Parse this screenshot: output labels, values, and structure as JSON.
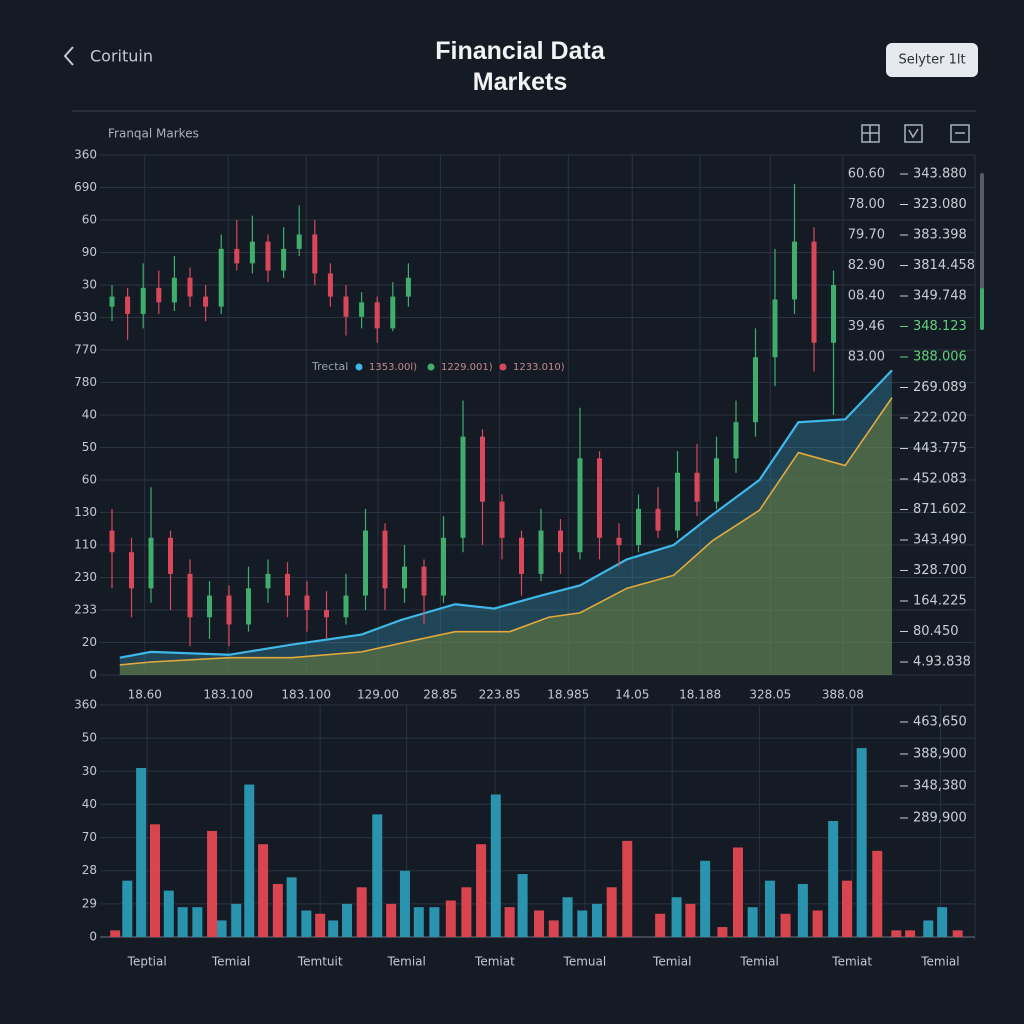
{
  "header": {
    "back_label": "Corituin",
    "title": "Financial Data Markets",
    "button": "Selyter 1lt"
  },
  "chart_data": [
    {
      "type": "candlestick",
      "label": "Franqal Markes",
      "grid": true,
      "xlim": [
        0,
        100
      ],
      "ylim": [
        0,
        360
      ],
      "xticks": [
        {
          "value": 4.2,
          "label": "18.60"
        },
        {
          "value": 14.9,
          "label": "183.100"
        },
        {
          "value": 24.9,
          "label": "183.100"
        },
        {
          "value": 34.1,
          "label": "129.00"
        },
        {
          "value": 42.1,
          "label": "28.85"
        },
        {
          "value": 49.7,
          "label": "223.85"
        },
        {
          "value": 58.5,
          "label": "18.985"
        },
        {
          "value": 66.7,
          "label": "14.05"
        },
        {
          "value": 75.4,
          "label": "18.188"
        },
        {
          "value": 84.4,
          "label": "328.05"
        },
        {
          "value": 93.7,
          "label": "388.08"
        }
      ],
      "yticks": [
        0,
        {
          "value": 22.5,
          "label": "20"
        },
        {
          "value": 45,
          "label": "233"
        },
        {
          "value": 67.5,
          "label": "230"
        },
        {
          "value": 90,
          "label": "110"
        },
        {
          "value": 112.5,
          "label": "130"
        },
        {
          "value": 135,
          "label": "60"
        },
        {
          "value": 157.5,
          "label": "50"
        },
        {
          "value": 180,
          "label": "40"
        },
        {
          "value": 202.5,
          "label": "780"
        },
        {
          "value": 225,
          "label": "770"
        },
        {
          "value": 247.5,
          "label": "630"
        },
        {
          "value": 270,
          "label": "30"
        },
        {
          "value": 292.5,
          "label": "90"
        },
        {
          "value": 315,
          "label": "60"
        },
        {
          "value": 337.5,
          "label": "690"
        },
        360
      ],
      "up_color": "#3fae6c",
      "down_color": "#d9485a",
      "series": [
        {
          "color": "#3fb8e8",
          "fill": "rgba(50,140,170,0.38)",
          "x": [
            1,
            5,
            15,
            23,
            32,
            37,
            44,
            49,
            55,
            60,
            66,
            72,
            77,
            83,
            88,
            94,
            100
          ],
          "values": [
            12,
            16,
            14,
            21,
            28,
            38,
            49,
            46,
            55,
            62,
            80,
            90,
            111,
            135,
            175,
            177,
            211
          ]
        },
        {
          "color": "#e3a93c",
          "fill": "rgba(110,125,60,0.55)",
          "x": [
            1,
            5,
            15,
            23,
            32,
            37,
            44,
            51,
            56,
            60,
            66,
            72,
            77,
            83,
            88,
            94,
            100
          ],
          "values": [
            7,
            9,
            12,
            12,
            16,
            22,
            30,
            30,
            40,
            43,
            60,
            69,
            93,
            114,
            154,
            145,
            192
          ]
        }
      ],
      "candles": [
        {
          "x": [
            0,
            2,
            4,
            6,
            8,
            10,
            12,
            14,
            16,
            18,
            20,
            22,
            24,
            26,
            28,
            30,
            32,
            34,
            36,
            38
          ],
          "open": [
            255,
            262,
            250,
            268,
            258,
            275,
            262,
            255,
            295,
            285,
            300,
            280,
            295,
            305,
            278,
            262,
            248,
            258,
            240,
            262
          ],
          "close": [
            262,
            250,
            268,
            258,
            275,
            262,
            255,
            295,
            285,
            300,
            280,
            295,
            305,
            278,
            262,
            248,
            258,
            240,
            262,
            275
          ],
          "high": [
            270,
            268,
            285,
            280,
            290,
            282,
            270,
            305,
            315,
            318,
            305,
            310,
            325,
            315,
            285,
            270,
            265,
            262,
            272,
            285
          ],
          "low": [
            245,
            232,
            240,
            250,
            252,
            255,
            245,
            250,
            280,
            278,
            272,
            275,
            290,
            270,
            255,
            235,
            240,
            230,
            238,
            255
          ]
        },
        {
          "x": [
            0,
            2.5,
            5,
            7.5,
            10,
            12.5,
            15,
            17.5,
            20,
            22.5,
            25,
            27.5,
            30,
            32.5,
            35,
            37.5,
            40,
            42.5,
            45,
            47.5,
            50,
            52.5,
            55,
            57.5,
            60,
            62.5,
            65,
            67.5,
            70,
            72.5,
            75,
            77.5,
            80,
            82.5,
            85,
            87.5,
            90,
            92.5
          ],
          "open": [
            100,
            85,
            60,
            95,
            70,
            40,
            55,
            35,
            60,
            70,
            55,
            45,
            40,
            55,
            100,
            60,
            75,
            55,
            95,
            165,
            120,
            95,
            70,
            100,
            85,
            150,
            95,
            90,
            115,
            100,
            140,
            120,
            150,
            175,
            220,
            260,
            300,
            230
          ],
          "close": [
            85,
            60,
            95,
            70,
            40,
            55,
            35,
            60,
            70,
            55,
            45,
            40,
            55,
            100,
            60,
            75,
            55,
            95,
            165,
            120,
            95,
            70,
            100,
            85,
            150,
            95,
            90,
            115,
            100,
            140,
            120,
            150,
            175,
            220,
            260,
            300,
            230,
            270
          ],
          "high": [
            115,
            95,
            130,
            100,
            80,
            65,
            62,
            75,
            80,
            78,
            65,
            58,
            70,
            115,
            105,
            90,
            80,
            110,
            190,
            170,
            125,
            100,
            115,
            108,
            185,
            155,
            105,
            125,
            130,
            155,
            160,
            165,
            190,
            240,
            295,
            340,
            310,
            280
          ],
          "low": [
            60,
            40,
            50,
            45,
            20,
            25,
            20,
            30,
            50,
            40,
            30,
            25,
            35,
            45,
            45,
            50,
            35,
            50,
            85,
            90,
            80,
            55,
            65,
            70,
            80,
            80,
            75,
            85,
            95,
            95,
            110,
            115,
            140,
            165,
            200,
            250,
            210,
            180
          ]
        }
      ],
      "legend": {
        "title": "Trectal",
        "entries": [
          {
            "label": "1353.00l)",
            "color": "#3fb8e8"
          },
          {
            "label": "1229.001)",
            "color": "#3fae6c"
          },
          {
            "label": "1233.010)",
            "color": "#d9485a"
          }
        ]
      },
      "annotations": [
        "60.60",
        "78.00",
        "79.70",
        "82.90",
        "08.40",
        "39.46",
        "83.00"
      ],
      "right_labels": [
        {
          "text": "343.880",
          "color": "#c9cfd6"
        },
        {
          "text": "323.080",
          "color": "#c9cfd6"
        },
        {
          "text": "383.398",
          "color": "#c9cfd6"
        },
        {
          "text": "3814.458",
          "color": "#c9cfd6"
        },
        {
          "text": "349.748",
          "color": "#c9cfd6"
        },
        {
          "text": "348.123",
          "color": "#5fd07a"
        },
        {
          "text": "388.006",
          "color": "#5fd07a"
        },
        {
          "text": "269.089",
          "color": "#c9cfd6"
        },
        {
          "text": "222.020",
          "color": "#c9cfd6"
        },
        {
          "text": "443.775",
          "color": "#c9cfd6"
        },
        {
          "text": "452.083",
          "color": "#c9cfd6"
        },
        {
          "text": "871.602",
          "color": "#c9cfd6"
        },
        {
          "text": "343.490",
          "color": "#c9cfd6"
        },
        {
          "text": "328.700",
          "color": "#c9cfd6"
        },
        {
          "text": "164.225",
          "color": "#c9cfd6"
        },
        {
          "text": "80.450",
          "color": "#c9cfd6"
        },
        {
          "text": "4.93.838",
          "color": "#c9cfd6"
        }
      ]
    },
    {
      "type": "bar",
      "grid": true,
      "xlim": [
        0,
        100
      ],
      "ylim": [
        0,
        7
      ],
      "yticks": [
        0,
        {
          "value": 1,
          "label": "29"
        },
        {
          "value": 2,
          "label": "28"
        },
        {
          "value": 3,
          "label": "70"
        },
        {
          "value": 4,
          "label": "40"
        },
        {
          "value": 5,
          "label": "30"
        },
        {
          "value": 6,
          "label": "50"
        },
        {
          "value": 7,
          "label": "360"
        }
      ],
      "xticks": [
        {
          "value": 4.3,
          "label": "Teptial"
        },
        {
          "value": 14,
          "label": "Temial"
        },
        {
          "value": 24.3,
          "label": "Temtuit"
        },
        {
          "value": 34.3,
          "label": "Temial"
        },
        {
          "value": 44.5,
          "label": "Temiat"
        },
        {
          "value": 54.9,
          "label": "Temual"
        },
        {
          "value": 65,
          "label": "Temial"
        },
        {
          "value": 75.1,
          "label": "Temial"
        },
        {
          "value": 85.8,
          "label": "Temiat"
        },
        {
          "value": 96,
          "label": "Temial"
        }
      ],
      "series": [
        {
          "color": "#2a93ad",
          "x": [
            2,
            3.6,
            6.8,
            8.4,
            10.1,
            12.9,
            14.6,
            16.1,
            21,
            22.7,
            25.8,
            27.4,
            30.9,
            34.1,
            35.7,
            37.5,
            44.6,
            47.7,
            52.9,
            54.6,
            56.3,
            65.5,
            68.8,
            74.3,
            76.3,
            80.1,
            83.6,
            86.9,
            94.6,
            96.2
          ],
          "values": [
            1.7,
            5.1,
            1.4,
            0.9,
            0.9,
            0.5,
            1,
            4.6,
            1.8,
            0.8,
            0.5,
            1,
            3.7,
            2,
            0.9,
            0.9,
            4.3,
            1.9,
            1.2,
            0.8,
            1,
            1.2,
            2.3,
            0.9,
            1.7,
            1.6,
            3.5,
            5.7,
            0.5,
            0.9
          ]
        },
        {
          "color": "#d9454f",
          "x": [
            0.6,
            5.2,
            11.8,
            17.7,
            19.4,
            24.3,
            29.1,
            32.5,
            39.4,
            41.2,
            42.9,
            46.2,
            49.6,
            51.3,
            58,
            59.8,
            63.6,
            67.1,
            70.8,
            72.6,
            78.1,
            81.8,
            85.2,
            88.7,
            90.9,
            92.5,
            98
          ],
          "values": [
            0.2,
            3.4,
            3.2,
            2.8,
            1.6,
            0.7,
            1.5,
            1,
            1.1,
            1.5,
            2.8,
            0.9,
            0.8,
            0.5,
            1.5,
            2.9,
            0.7,
            1,
            0.3,
            2.7,
            0.7,
            0.8,
            1.7,
            2.6,
            0.2,
            0.2,
            0.2
          ]
        }
      ],
      "right_labels": [
        {
          "text": "463,650",
          "color": "#c9cfd6"
        },
        {
          "text": "388,900",
          "color": "#c9cfd6"
        },
        {
          "text": "348,380",
          "color": "#c9cfd6"
        },
        {
          "text": "289,900",
          "color": "#c9cfd6"
        }
      ]
    }
  ]
}
